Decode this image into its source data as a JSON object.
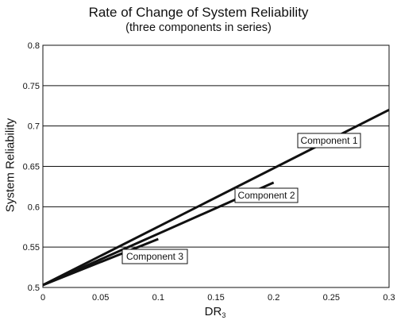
{
  "chart_data": {
    "type": "line",
    "title": "Rate of Change of System Reliability",
    "subtitle": "(three components in series)",
    "xlabel_main": "DR",
    "xlabel_sub": "3",
    "ylabel": "System Reliability",
    "xlim": [
      0,
      0.3
    ],
    "ylim": [
      0.5,
      0.8
    ],
    "x_ticks": [
      "0",
      "0.05",
      "0.1",
      "0.15",
      "0.2",
      "0.25",
      "0.3"
    ],
    "y_ticks": [
      "0.5",
      "0.55",
      "0.6",
      "0.65",
      "0.7",
      "0.75",
      "0.8"
    ],
    "grid": "horizontal",
    "line_color": "#111111",
    "series": [
      {
        "name": "Component 1",
        "x": [
          0,
          0.3
        ],
        "y": [
          0.503,
          0.72
        ]
      },
      {
        "name": "Component 2",
        "x": [
          0,
          0.2
        ],
        "y": [
          0.503,
          0.63
        ]
      },
      {
        "name": "Component 3",
        "x": [
          0,
          0.1
        ],
        "y": [
          0.503,
          0.56
        ]
      }
    ]
  }
}
